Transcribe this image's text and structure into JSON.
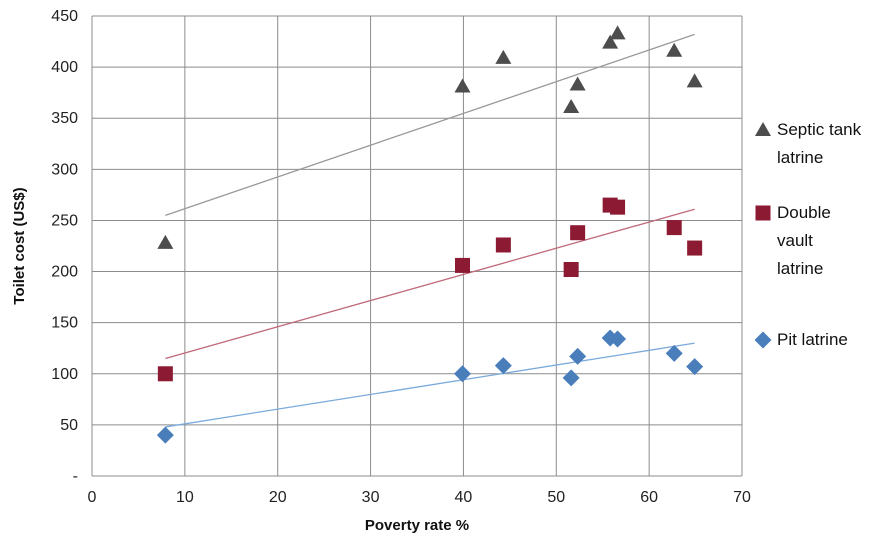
{
  "chart_data": {
    "type": "scatter",
    "xlabel": "Poverty rate %",
    "ylabel": "Toilet cost (US$)",
    "xlim": [
      0,
      70
    ],
    "ylim": [
      0,
      450
    ],
    "xticks": [
      "0",
      "10",
      "20",
      "30",
      "40",
      "50",
      "60",
      "70"
    ],
    "yticks": [
      "-",
      "50",
      "100",
      "150",
      "200",
      "250",
      "300",
      "350",
      "400",
      "450"
    ],
    "grid": true,
    "legend_position": "right",
    "series": [
      {
        "name": "Septic tank latrine",
        "legend_lines": [
          "Septic tank",
          "latrine"
        ],
        "marker": "triangle",
        "color": "#4d4d4d",
        "trend_color": "#999999",
        "x": [
          7.9,
          39.9,
          44.3,
          51.6,
          52.3,
          55.8,
          56.6,
          62.7,
          64.9
        ],
        "y": [
          228,
          381,
          409,
          361,
          383,
          424,
          433,
          416,
          386
        ],
        "trendline": [
          [
            7.9,
            255
          ],
          [
            64.9,
            432
          ]
        ]
      },
      {
        "name": "Double vault latrine",
        "legend_lines": [
          "Double",
          "vault",
          "latrine"
        ],
        "marker": "square",
        "color": "#8b1a32",
        "trend_color": "#c06a7a",
        "x": [
          7.9,
          39.9,
          44.3,
          51.6,
          52.3,
          55.8,
          56.6,
          62.7,
          64.9
        ],
        "y": [
          100,
          206,
          226,
          202,
          238,
          265,
          263,
          243,
          223
        ],
        "trendline": [
          [
            7.9,
            115
          ],
          [
            64.9,
            261
          ]
        ]
      },
      {
        "name": "Pit latrine",
        "legend_lines": [
          "Pit latrine"
        ],
        "marker": "diamond",
        "color": "#4a7ebb",
        "trend_color": "#7aaadc",
        "x": [
          7.9,
          39.9,
          44.3,
          51.6,
          52.3,
          55.8,
          56.6,
          62.7,
          64.9
        ],
        "y": [
          40,
          100,
          108,
          96,
          117,
          135,
          134,
          120,
          107
        ],
        "trendline": [
          [
            7.9,
            48
          ],
          [
            64.9,
            130
          ]
        ]
      }
    ]
  }
}
